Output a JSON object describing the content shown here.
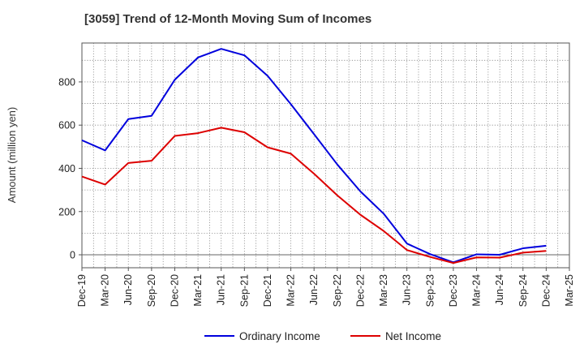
{
  "chart_data": {
    "type": "line",
    "title": "[3059]  Trend of 12-Month Moving Sum of Incomes",
    "xlabel": "",
    "ylabel": "Amount (million yen)",
    "ylim": [
      -60,
      980
    ],
    "yticks": [
      0,
      200,
      400,
      600,
      800
    ],
    "grid": true,
    "legend_position": "bottom",
    "categories": [
      "Dec-19",
      "Mar-20",
      "Jun-20",
      "Sep-20",
      "Dec-20",
      "Mar-21",
      "Jun-21",
      "Sep-21",
      "Dec-21",
      "Mar-22",
      "Jun-22",
      "Sep-22",
      "Dec-22",
      "Mar-23",
      "Jun-23",
      "Sep-23",
      "Dec-23",
      "Mar-24",
      "Jun-24",
      "Sep-24",
      "Dec-24",
      "Mar-25"
    ],
    "series": [
      {
        "name": "Ordinary Income",
        "color": "#0000dd",
        "values": [
          530,
          483,
          628,
          643,
          810,
          913,
          953,
          923,
          828,
          697,
          558,
          418,
          293,
          190,
          52,
          3,
          -35,
          2,
          0,
          30,
          42,
          null
        ]
      },
      {
        "name": "Net Income",
        "color": "#dd0000",
        "values": [
          362,
          325,
          425,
          435,
          550,
          563,
          588,
          567,
          497,
          468,
          375,
          275,
          185,
          110,
          22,
          -10,
          -38,
          -12,
          -13,
          10,
          18,
          null
        ]
      }
    ]
  }
}
